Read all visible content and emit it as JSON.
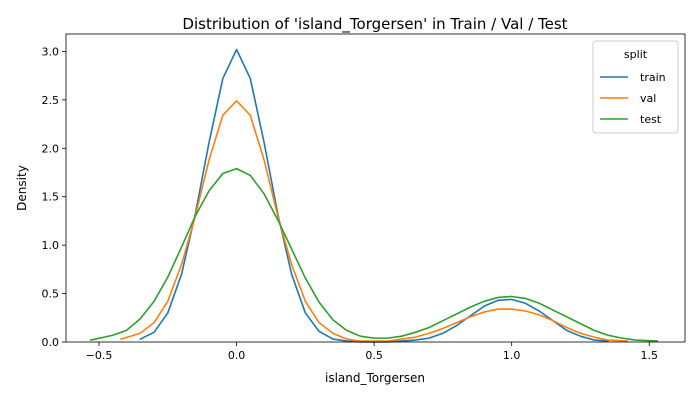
{
  "chart_data": {
    "type": "line",
    "title": "Distribution of 'island_Torgersen' in Train / Val / Test",
    "xlabel": "island_Torgersen",
    "ylabel": "Density",
    "xlim": [
      -0.62,
      1.63
    ],
    "ylim": [
      0,
      3.18
    ],
    "xticks": [
      -0.5,
      0.0,
      0.5,
      1.0,
      1.5
    ],
    "xtick_labels": [
      "−0.5",
      "0.0",
      "0.5",
      "1.0",
      "1.5"
    ],
    "yticks": [
      0.0,
      0.5,
      1.0,
      1.5,
      2.0,
      2.5,
      3.0
    ],
    "ytick_labels": [
      "0.0",
      "0.5",
      "1.0",
      "1.5",
      "2.0",
      "2.5",
      "3.0"
    ],
    "grid": false,
    "legend": {
      "title": "split",
      "placement": "top-right"
    },
    "series": [
      {
        "name": "train",
        "color": "#1f77b4",
        "x": [
          -0.35,
          -0.3,
          -0.25,
          -0.2,
          -0.15,
          -0.1,
          -0.05,
          0.0,
          0.05,
          0.1,
          0.15,
          0.2,
          0.25,
          0.3,
          0.35,
          0.4,
          0.45,
          0.5,
          0.55,
          0.6,
          0.65,
          0.7,
          0.75,
          0.8,
          0.85,
          0.9,
          0.95,
          1.0,
          1.05,
          1.1,
          1.15,
          1.2,
          1.25,
          1.3,
          1.35
        ],
        "y": [
          0.03,
          0.1,
          0.3,
          0.7,
          1.32,
          2.06,
          2.72,
          3.02,
          2.72,
          2.06,
          1.32,
          0.7,
          0.3,
          0.11,
          0.03,
          0.01,
          0.0,
          0.0,
          0.0,
          0.01,
          0.02,
          0.04,
          0.09,
          0.17,
          0.27,
          0.37,
          0.43,
          0.44,
          0.4,
          0.32,
          0.22,
          0.12,
          0.06,
          0.02,
          0.01
        ]
      },
      {
        "name": "val",
        "color": "#ff7f0e",
        "x": [
          -0.42,
          -0.35,
          -0.3,
          -0.25,
          -0.2,
          -0.15,
          -0.1,
          -0.05,
          0.0,
          0.05,
          0.1,
          0.15,
          0.2,
          0.25,
          0.3,
          0.35,
          0.4,
          0.45,
          0.5,
          0.55,
          0.6,
          0.65,
          0.7,
          0.75,
          0.8,
          0.85,
          0.9,
          0.95,
          1.0,
          1.05,
          1.1,
          1.15,
          1.2,
          1.25,
          1.3,
          1.35,
          1.42
        ],
        "y": [
          0.03,
          0.09,
          0.2,
          0.42,
          0.8,
          1.3,
          1.88,
          2.34,
          2.49,
          2.34,
          1.88,
          1.3,
          0.8,
          0.42,
          0.2,
          0.09,
          0.03,
          0.01,
          0.01,
          0.01,
          0.03,
          0.05,
          0.09,
          0.14,
          0.2,
          0.26,
          0.31,
          0.34,
          0.34,
          0.32,
          0.28,
          0.22,
          0.15,
          0.09,
          0.05,
          0.02,
          0.01
        ]
      },
      {
        "name": "test",
        "color": "#2ca02c",
        "x": [
          -0.53,
          -0.45,
          -0.4,
          -0.35,
          -0.3,
          -0.25,
          -0.2,
          -0.15,
          -0.1,
          -0.05,
          0.0,
          0.05,
          0.1,
          0.15,
          0.2,
          0.25,
          0.3,
          0.35,
          0.4,
          0.45,
          0.5,
          0.55,
          0.6,
          0.65,
          0.7,
          0.75,
          0.8,
          0.85,
          0.9,
          0.95,
          1.0,
          1.05,
          1.1,
          1.15,
          1.2,
          1.25,
          1.3,
          1.35,
          1.4,
          1.45,
          1.53
        ],
        "y": [
          0.02,
          0.07,
          0.12,
          0.24,
          0.42,
          0.67,
          0.98,
          1.3,
          1.56,
          1.74,
          1.79,
          1.72,
          1.53,
          1.26,
          0.96,
          0.66,
          0.41,
          0.23,
          0.12,
          0.06,
          0.04,
          0.04,
          0.06,
          0.1,
          0.15,
          0.22,
          0.29,
          0.36,
          0.42,
          0.46,
          0.47,
          0.45,
          0.4,
          0.33,
          0.26,
          0.19,
          0.12,
          0.07,
          0.04,
          0.02,
          0.01
        ]
      }
    ]
  }
}
